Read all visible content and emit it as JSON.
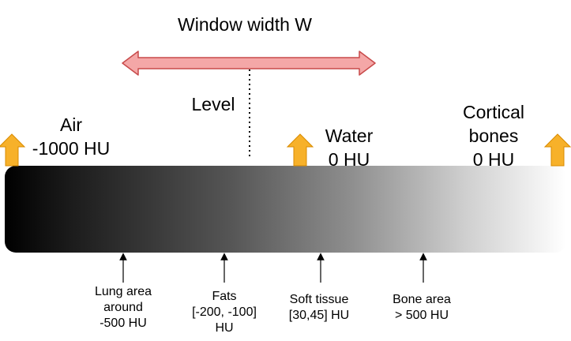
{
  "title": "Window width W",
  "level_label": "Level",
  "top_labels": {
    "air": {
      "name": "Air",
      "value": "-1000 HU"
    },
    "water": {
      "name": "Water",
      "value": "0 HU"
    },
    "cortical": {
      "line1": "Cortical",
      "line2": "bones",
      "value": "0 HU"
    }
  },
  "bottom_labels": {
    "lung": {
      "line1": "Lung area",
      "line2": "around",
      "line3": "-500 HU"
    },
    "fats": {
      "line1": "Fats",
      "line2": "[-200, -100]",
      "line3": "HU"
    },
    "soft": {
      "line1": "Soft tissue",
      "line2": "[30,45] HU"
    },
    "bone": {
      "line1": "Bone area",
      "line2": "> 500 HU"
    }
  },
  "colors": {
    "window_arrow_fill": "#f4a7a7",
    "window_arrow_stroke": "#c84a4a",
    "marker_arrow_fill": "#f7b12a",
    "marker_arrow_stroke": "#d98b00"
  }
}
